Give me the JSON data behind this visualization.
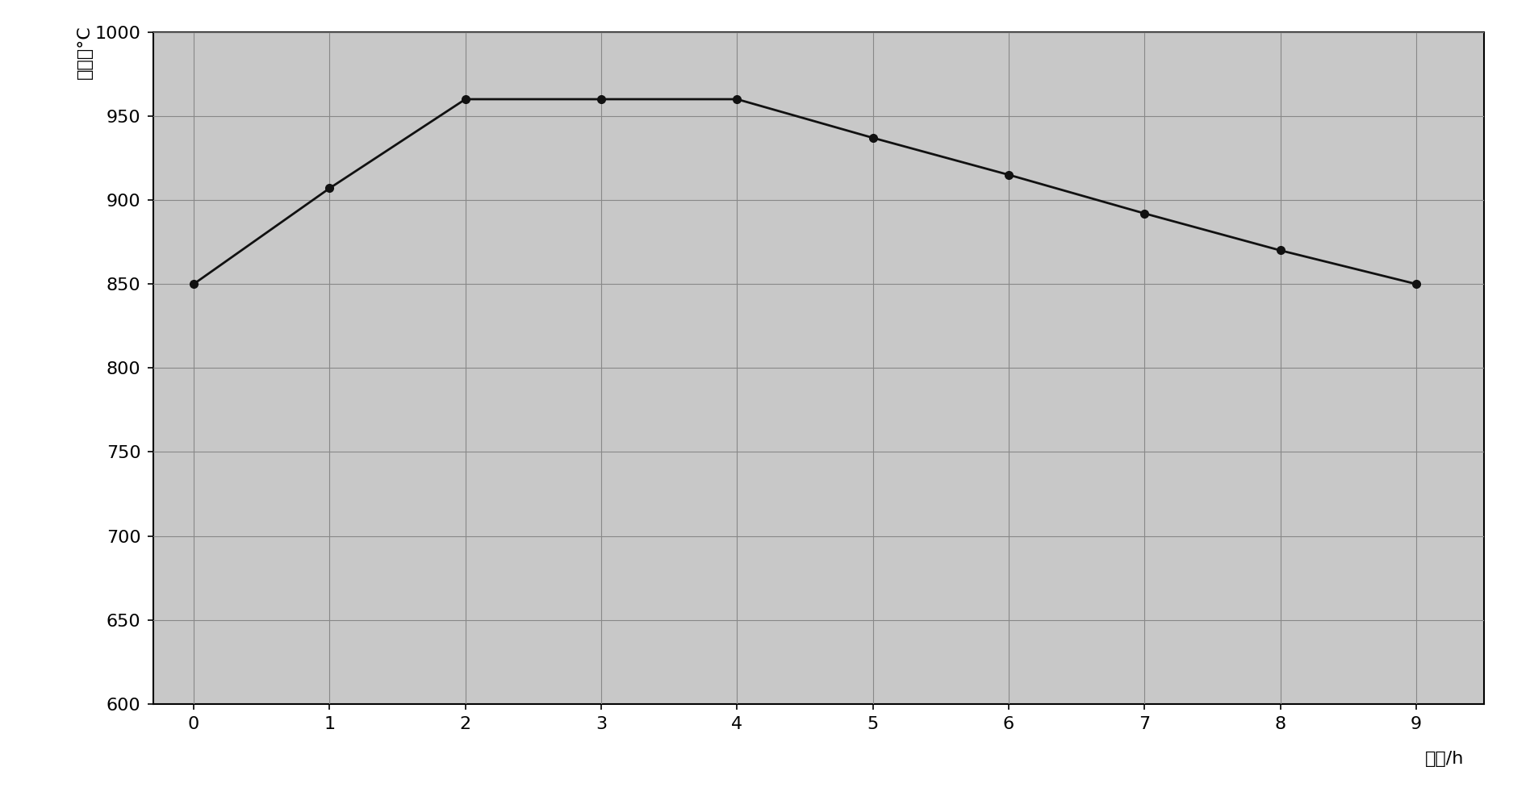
{
  "x": [
    0,
    1,
    2,
    3,
    4,
    5,
    6,
    7,
    8,
    9
  ],
  "y": [
    850,
    907,
    960,
    960,
    960,
    937,
    915,
    892,
    870,
    850
  ],
  "xlabel": "时间/h",
  "ylabel": "温度／°C",
  "xlim": [
    -0.3,
    9.5
  ],
  "ylim": [
    600,
    1000
  ],
  "yticks": [
    600,
    650,
    700,
    750,
    800,
    850,
    900,
    950,
    1000
  ],
  "xticks": [
    0,
    1,
    2,
    3,
    4,
    5,
    6,
    7,
    8,
    9
  ],
  "line_color": "#111111",
  "marker": "o",
  "marker_size": 7,
  "marker_color": "#111111",
  "plot_bg_color": "#c8c8c8",
  "fig_bg_color": "#ffffff",
  "grid_color": "#888888",
  "grid_style": "-",
  "line_width": 2.0,
  "xlabel_fontsize": 16,
  "ylabel_fontsize": 16,
  "tick_fontsize": 16,
  "tick_color": "#000000"
}
